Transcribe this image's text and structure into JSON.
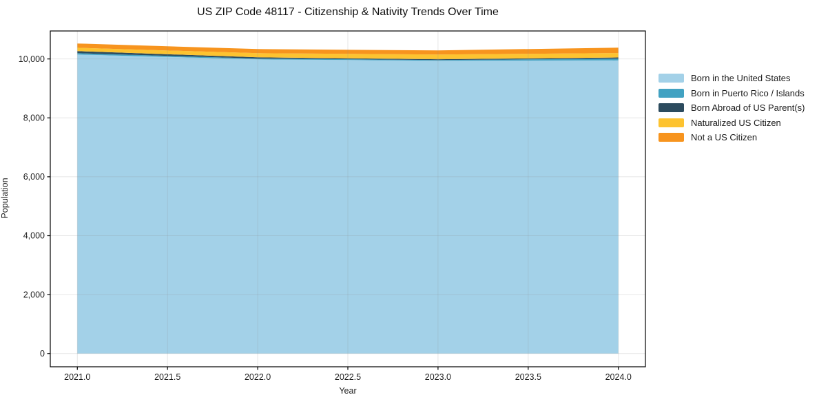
{
  "chart_data": {
    "type": "area",
    "stacked": true,
    "title": "US ZIP Code 48117 - Citizenship & Nativity Trends Over Time",
    "xlabel": "Year",
    "ylabel": "Population",
    "x": [
      2021,
      2022,
      2023,
      2024
    ],
    "series": [
      {
        "name": "Born in the United States",
        "color": "#A3D1E8",
        "values": [
          10150,
          9985,
          9940,
          9950
        ]
      },
      {
        "name": "Born in Puerto Rico / Islands",
        "color": "#42A2C2",
        "values": [
          45,
          30,
          25,
          60
        ]
      },
      {
        "name": "Born Abroad of US Parent(s)",
        "color": "#2C4B5E",
        "values": [
          70,
          40,
          25,
          40
        ]
      },
      {
        "name": "Naturalized US Citizen",
        "color": "#FDC330",
        "values": [
          115,
          140,
          160,
          150
        ]
      },
      {
        "name": "Not a US Citizen",
        "color": "#F7941E",
        "values": [
          145,
          140,
          140,
          185
        ]
      }
    ],
    "totals": [
      10525,
      10335,
      10290,
      10385
    ],
    "x_ticks": [
      2021.0,
      2021.5,
      2022.0,
      2022.5,
      2023.0,
      2023.5,
      2024.0
    ],
    "x_tick_labels": [
      "2021.0",
      "2021.5",
      "2022.0",
      "2022.5",
      "2023.0",
      "2023.5",
      "2024.0"
    ],
    "y_ticks": [
      0,
      2000,
      4000,
      6000,
      8000,
      10000
    ],
    "y_tick_labels": [
      "0",
      "2,000",
      "4,000",
      "6,000",
      "8,000",
      "10,000"
    ],
    "xlim": [
      2020.85,
      2024.15
    ],
    "ylim": [
      -450,
      10950
    ],
    "grid": true,
    "legend_position": "right",
    "background_color": "#ffffff",
    "axis_color": "#000000"
  }
}
